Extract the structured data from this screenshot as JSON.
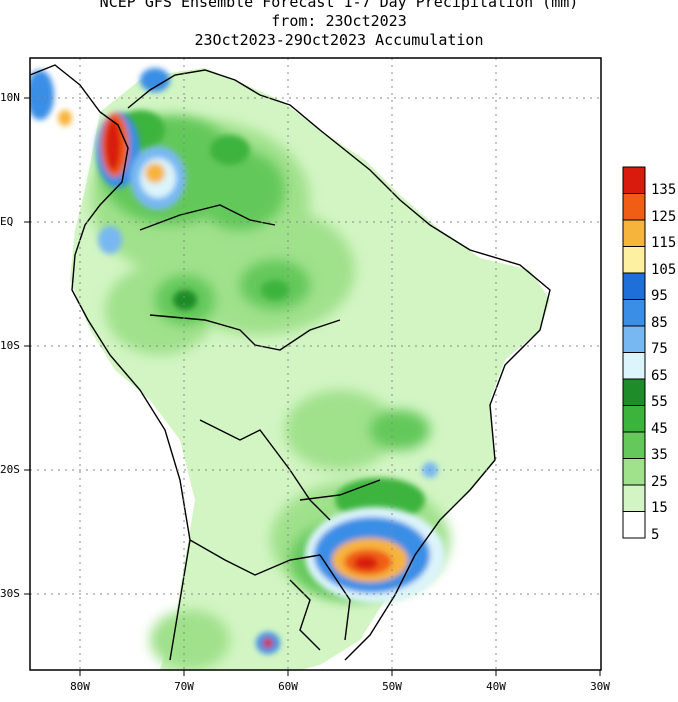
{
  "titles": {
    "line1": "NCEP GFS Ensemble Forecast 1-7 Day Precipitation (mm)",
    "line2": "from: 23Oct2023",
    "line3": "23Oct2023-29Oct2023 Accumulation"
  },
  "axes": {
    "lat_labels": [
      "10N",
      "EQ",
      "10S",
      "20S",
      "30S"
    ],
    "lon_labels": [
      "80W",
      "70W",
      "60W",
      "50W",
      "40W",
      "30W"
    ]
  },
  "legend": {
    "levels": [
      "135",
      "125",
      "115",
      "105",
      "95",
      "85",
      "75",
      "65",
      "55",
      "45",
      "35",
      "25",
      "15",
      "5"
    ],
    "colors": [
      "#d81b0c",
      "#f05e16",
      "#f7b43c",
      "#fdf0a0",
      "#1f6fd8",
      "#3b8ee6",
      "#78b8f2",
      "#dcf4fb",
      "#1e8c28",
      "#3cb43c",
      "#64c85a",
      "#a0e18c",
      "#d2f5c3",
      "#ffffff"
    ]
  }
}
